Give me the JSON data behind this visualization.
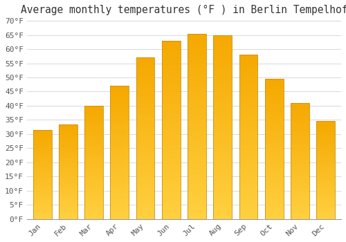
{
  "title": "Average monthly temperatures (°F ) in Berlin Tempelhof",
  "months": [
    "Jan",
    "Feb",
    "Mar",
    "Apr",
    "May",
    "Jun",
    "Jul",
    "Aug",
    "Sep",
    "Oct",
    "Nov",
    "Dec"
  ],
  "values": [
    31.5,
    33.5,
    40.0,
    47.0,
    57.0,
    63.0,
    65.5,
    65.0,
    58.0,
    49.5,
    41.0,
    34.5
  ],
  "bar_color_bottom": "#FFD040",
  "bar_color_top": "#F5A800",
  "bar_edge_color": "#C8900A",
  "ylim": [
    0,
    70
  ],
  "yticks": [
    0,
    5,
    10,
    15,
    20,
    25,
    30,
    35,
    40,
    45,
    50,
    55,
    60,
    65,
    70
  ],
  "grid_color": "#d8d8d8",
  "bg_color": "#ffffff",
  "title_fontsize": 10.5,
  "tick_fontsize": 8
}
